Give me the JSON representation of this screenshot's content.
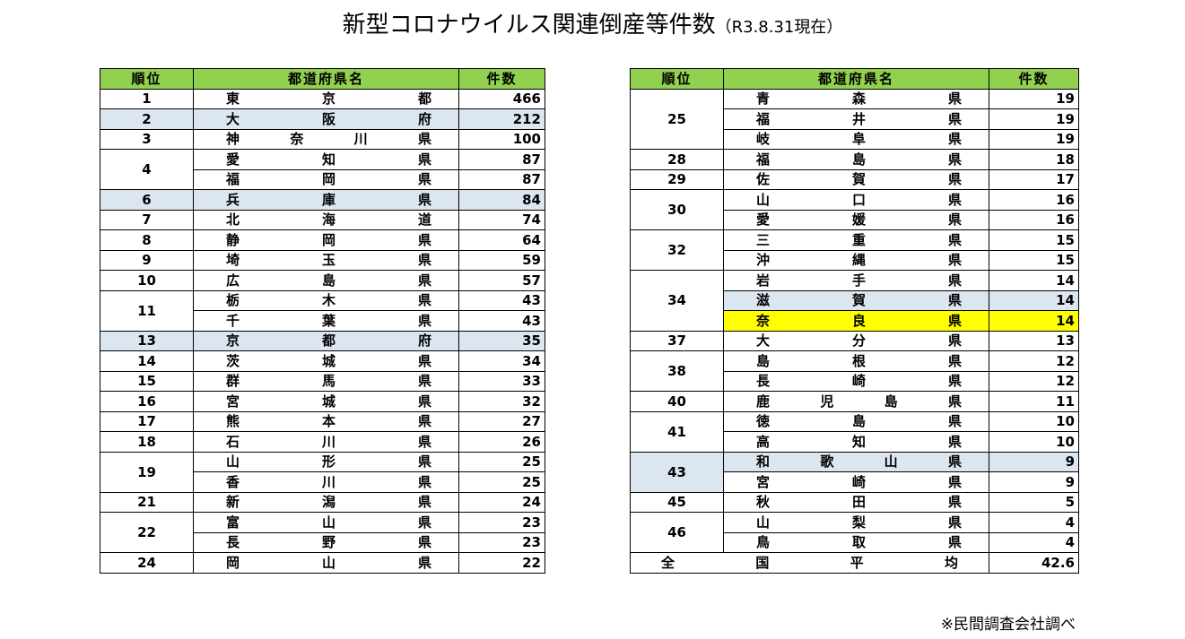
{
  "title": {
    "main": "新型コロナウイルス関連倒産等件数",
    "sub": "（R3.8.31現在）"
  },
  "headers": {
    "rank": "順位",
    "pref": "都道府県名",
    "count": "件数"
  },
  "left_table": [
    {
      "rank": "1",
      "rows": [
        {
          "pref": "東京都",
          "count": "466"
        }
      ]
    },
    {
      "rank": "2",
      "highlight": "blue",
      "rows": [
        {
          "pref": "大阪府",
          "count": "212"
        }
      ]
    },
    {
      "rank": "3",
      "rows": [
        {
          "pref": "神奈川県",
          "count": "100"
        }
      ]
    },
    {
      "rank": "4",
      "rows": [
        {
          "pref": "愛知県",
          "count": "87"
        },
        {
          "pref": "福岡県",
          "count": "87"
        }
      ]
    },
    {
      "rank": "6",
      "highlight": "blue",
      "rows": [
        {
          "pref": "兵庫県",
          "count": "84"
        }
      ]
    },
    {
      "rank": "7",
      "rows": [
        {
          "pref": "北海道",
          "count": "74"
        }
      ]
    },
    {
      "rank": "8",
      "rows": [
        {
          "pref": "静岡県",
          "count": "64"
        }
      ]
    },
    {
      "rank": "9",
      "rows": [
        {
          "pref": "埼玉県",
          "count": "59"
        }
      ]
    },
    {
      "rank": "10",
      "rows": [
        {
          "pref": "広島県",
          "count": "57"
        }
      ]
    },
    {
      "rank": "11",
      "rows": [
        {
          "pref": "栃木県",
          "count": "43"
        },
        {
          "pref": "千葉県",
          "count": "43"
        }
      ]
    },
    {
      "rank": "13",
      "highlight": "blue",
      "rows": [
        {
          "pref": "京都府",
          "count": "35"
        }
      ]
    },
    {
      "rank": "14",
      "rows": [
        {
          "pref": "茨城県",
          "count": "34"
        }
      ]
    },
    {
      "rank": "15",
      "rows": [
        {
          "pref": "群馬県",
          "count": "33"
        }
      ]
    },
    {
      "rank": "16",
      "rows": [
        {
          "pref": "宮城県",
          "count": "32"
        }
      ]
    },
    {
      "rank": "17",
      "rows": [
        {
          "pref": "熊本県",
          "count": "27"
        }
      ]
    },
    {
      "rank": "18",
      "rows": [
        {
          "pref": "石川県",
          "count": "26"
        }
      ]
    },
    {
      "rank": "19",
      "rows": [
        {
          "pref": "山形県",
          "count": "25"
        },
        {
          "pref": "香川県",
          "count": "25"
        }
      ]
    },
    {
      "rank": "21",
      "rows": [
        {
          "pref": "新潟県",
          "count": "24"
        }
      ]
    },
    {
      "rank": "22",
      "rows": [
        {
          "pref": "富山県",
          "count": "23"
        },
        {
          "pref": "長野県",
          "count": "23"
        }
      ]
    },
    {
      "rank": "24",
      "rows": [
        {
          "pref": "岡山県",
          "count": "22"
        }
      ]
    }
  ],
  "right_table": [
    {
      "rank": "25",
      "rows": [
        {
          "pref": "青森県",
          "count": "19"
        },
        {
          "pref": "福井県",
          "count": "19"
        },
        {
          "pref": "岐阜県",
          "count": "19"
        }
      ]
    },
    {
      "rank": "28",
      "rows": [
        {
          "pref": "福島県",
          "count": "18"
        }
      ]
    },
    {
      "rank": "29",
      "rows": [
        {
          "pref": "佐賀県",
          "count": "17"
        }
      ]
    },
    {
      "rank": "30",
      "rows": [
        {
          "pref": "山口県",
          "count": "16"
        },
        {
          "pref": "愛媛県",
          "count": "16"
        }
      ]
    },
    {
      "rank": "32",
      "rows": [
        {
          "pref": "三重県",
          "count": "15"
        },
        {
          "pref": "沖縄県",
          "count": "15"
        }
      ]
    },
    {
      "rank": "34",
      "rows": [
        {
          "pref": "岩手県",
          "count": "14"
        },
        {
          "pref": "滋賀県",
          "count": "14",
          "highlight": "blue"
        },
        {
          "pref": "奈良県",
          "count": "14",
          "highlight": "yellow"
        }
      ]
    },
    {
      "rank": "37",
      "rows": [
        {
          "pref": "大分県",
          "count": "13"
        }
      ]
    },
    {
      "rank": "38",
      "rows": [
        {
          "pref": "島根県",
          "count": "12"
        },
        {
          "pref": "長崎県",
          "count": "12"
        }
      ]
    },
    {
      "rank": "40",
      "rows": [
        {
          "pref": "鹿児島県",
          "count": "11"
        }
      ]
    },
    {
      "rank": "41",
      "rows": [
        {
          "pref": "徳島県",
          "count": "10"
        },
        {
          "pref": "高知県",
          "count": "10"
        }
      ]
    },
    {
      "rank": "43",
      "rows": [
        {
          "pref": "和歌山県",
          "count": "9",
          "highlight": "blue"
        },
        {
          "pref": "宮崎県",
          "count": "9"
        }
      ]
    },
    {
      "rank": "45",
      "rows": [
        {
          "pref": "秋田県",
          "count": "5"
        }
      ]
    },
    {
      "rank": "46",
      "rows": [
        {
          "pref": "山梨県",
          "count": "4"
        },
        {
          "pref": "鳥取県",
          "count": "4"
        }
      ]
    }
  ],
  "average": {
    "label": "全国平均",
    "count": "42.6"
  },
  "note": "※民間調査会社調べ",
  "colors": {
    "header_bg": "#92d050",
    "highlight_blue": "#dce6f1",
    "highlight_yellow": "#ffff00"
  }
}
